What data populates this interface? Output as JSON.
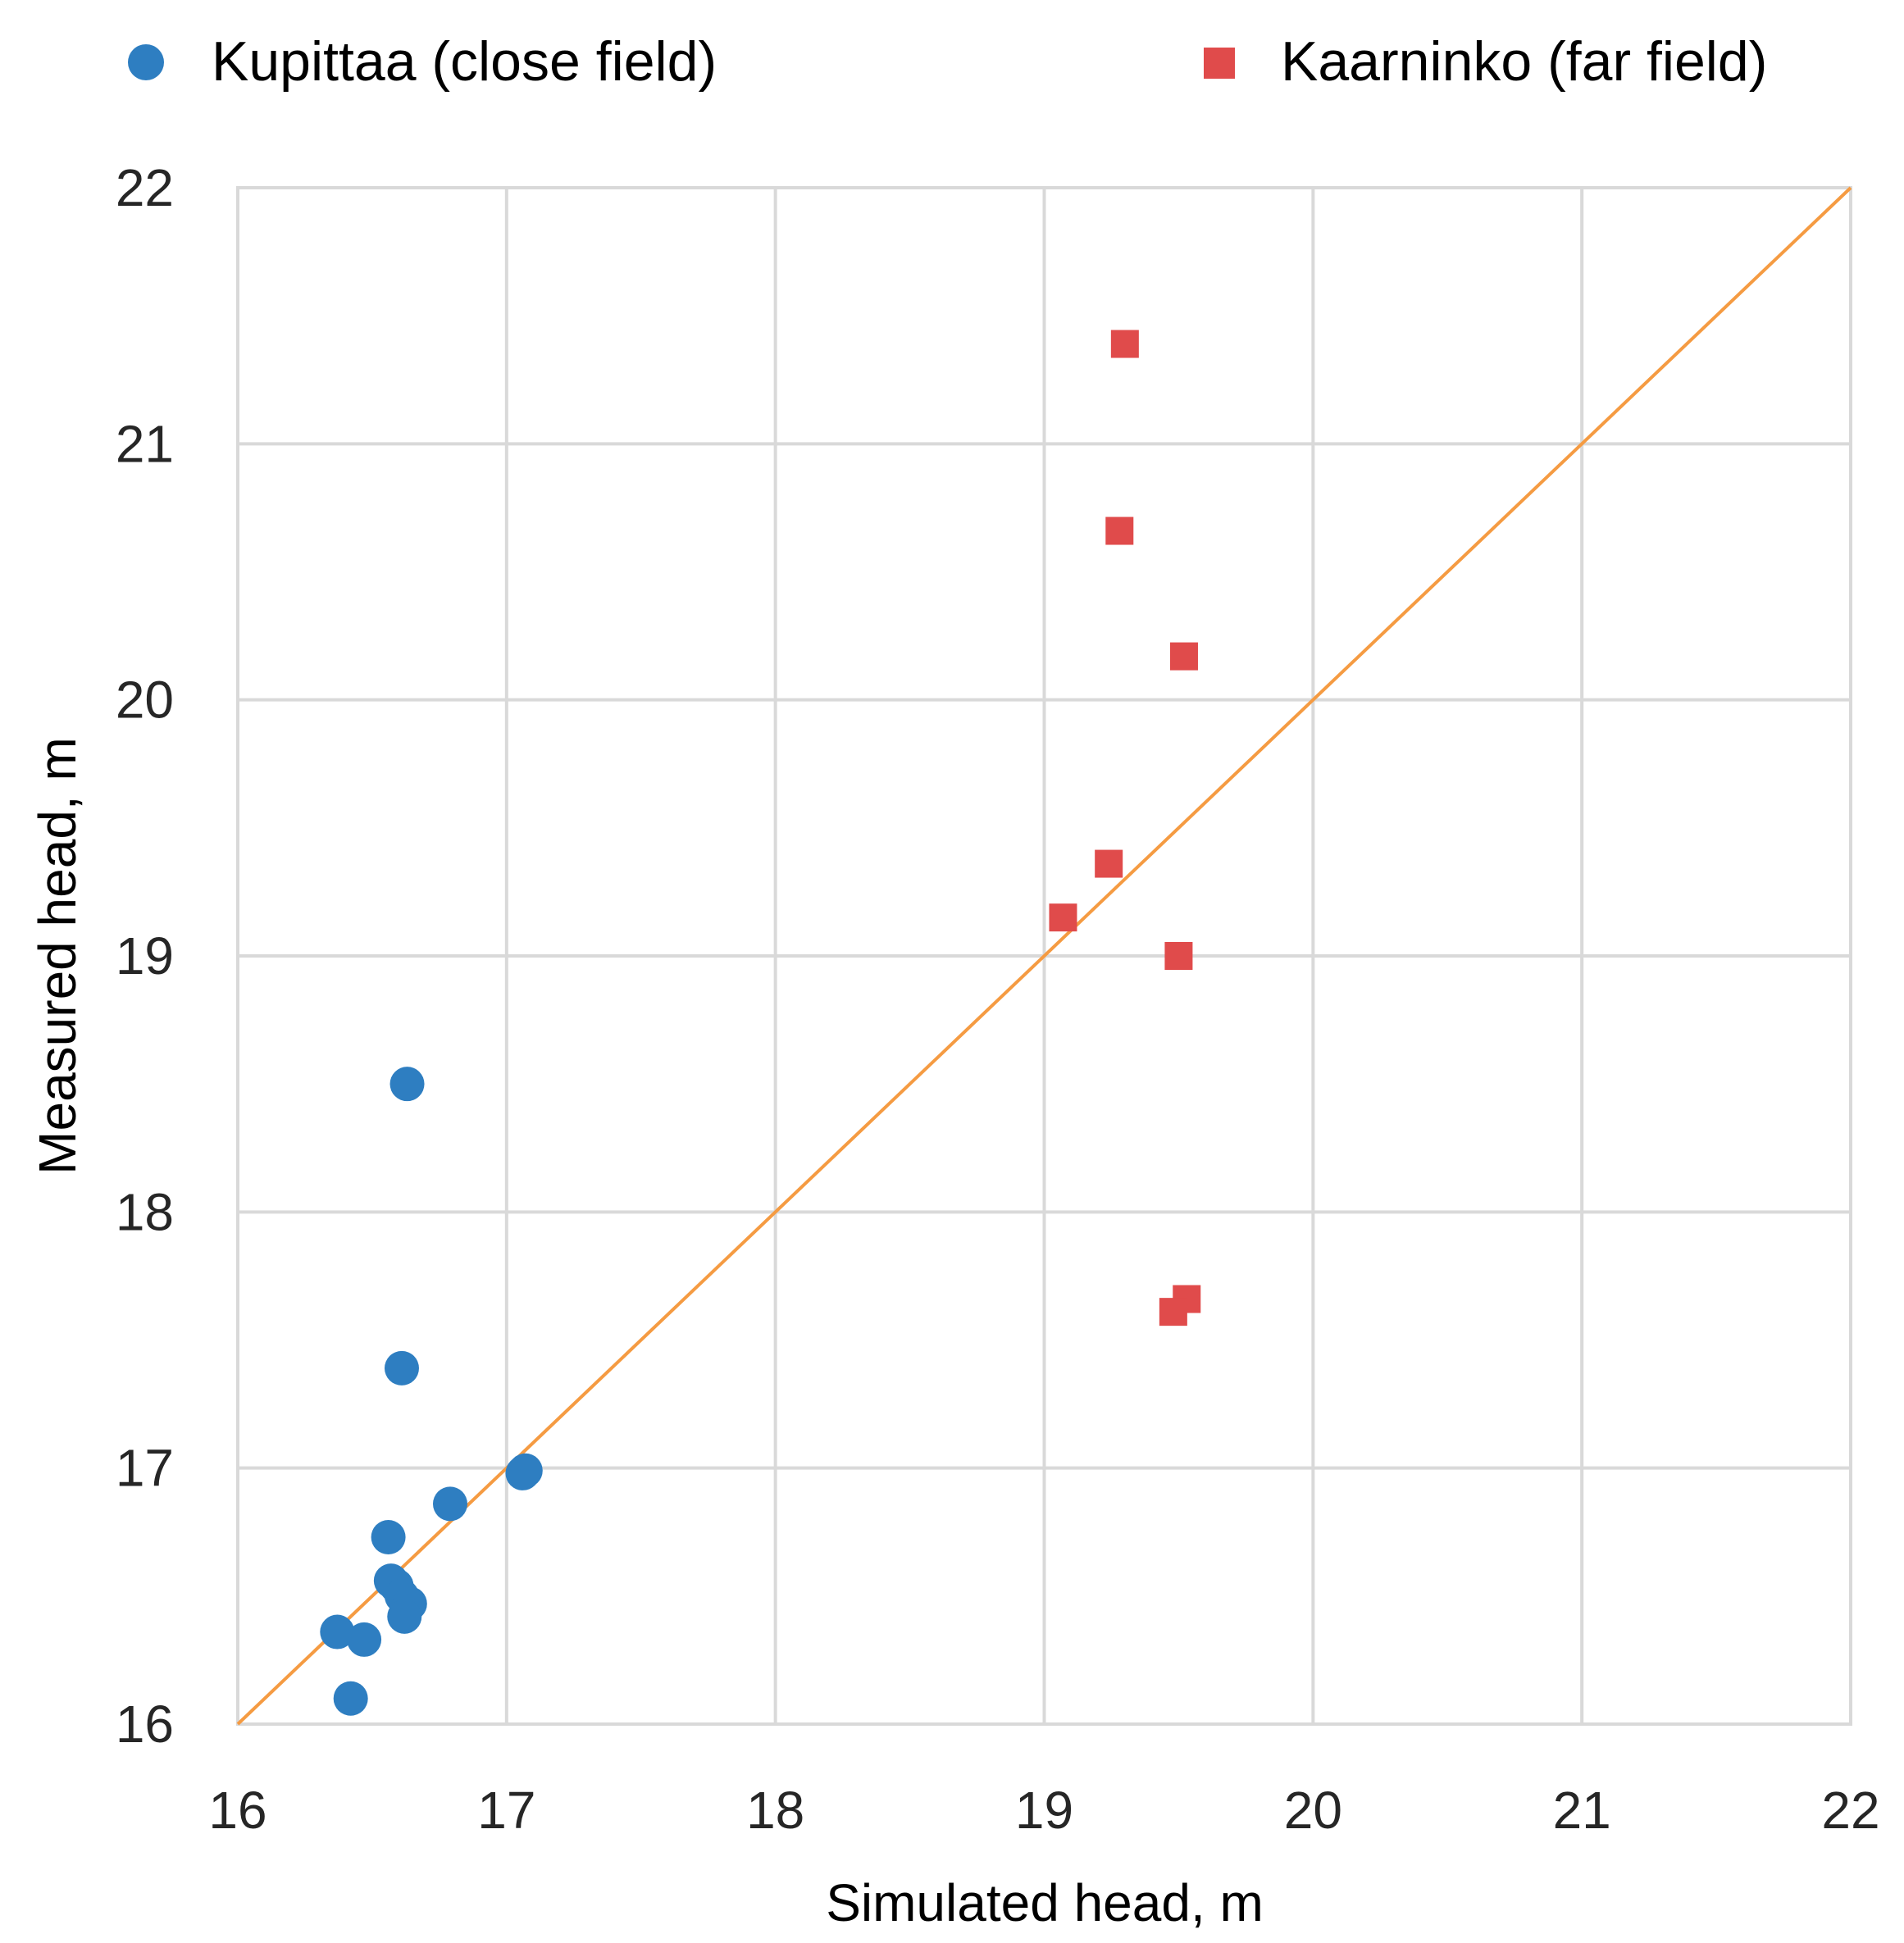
{
  "chart_data": {
    "type": "scatter",
    "title": "",
    "xlabel": "Simulated head, m",
    "ylabel": "Measured head, m",
    "xlim": [
      16,
      22
    ],
    "ylim": [
      16,
      22
    ],
    "xticks": [
      "16",
      "17",
      "18",
      "19",
      "20",
      "21",
      "22"
    ],
    "yticks": [
      "16",
      "17",
      "18",
      "19",
      "20",
      "21",
      "22"
    ],
    "grid": true,
    "legend_position": "top",
    "reference_line": {
      "name": "1:1 line",
      "points": [
        [
          16,
          16
        ],
        [
          22,
          22
        ]
      ],
      "color": "#F59B42"
    },
    "series": [
      {
        "name": "Kupittaa (close field)",
        "marker": "circle",
        "color": "#2E7EC1",
        "points": [
          [
            16.63,
            18.5
          ],
          [
            16.61,
            17.39
          ],
          [
            17.06,
            16.98
          ],
          [
            17.07,
            16.99
          ],
          [
            16.79,
            16.86
          ],
          [
            16.56,
            16.73
          ],
          [
            16.57,
            16.56
          ],
          [
            16.59,
            16.54
          ],
          [
            16.61,
            16.5
          ],
          [
            16.64,
            16.47
          ],
          [
            16.62,
            16.42
          ],
          [
            16.37,
            16.36
          ],
          [
            16.47,
            16.33
          ],
          [
            16.42,
            16.1
          ]
        ]
      },
      {
        "name": "Kaarninko (far field)",
        "marker": "square",
        "color": "#E04B4B",
        "points": [
          [
            19.3,
            21.39
          ],
          [
            19.28,
            20.66
          ],
          [
            19.52,
            20.17
          ],
          [
            19.24,
            19.36
          ],
          [
            19.07,
            19.15
          ],
          [
            19.5,
            19.0
          ],
          [
            19.53,
            17.66
          ],
          [
            19.48,
            17.61
          ]
        ]
      }
    ]
  }
}
